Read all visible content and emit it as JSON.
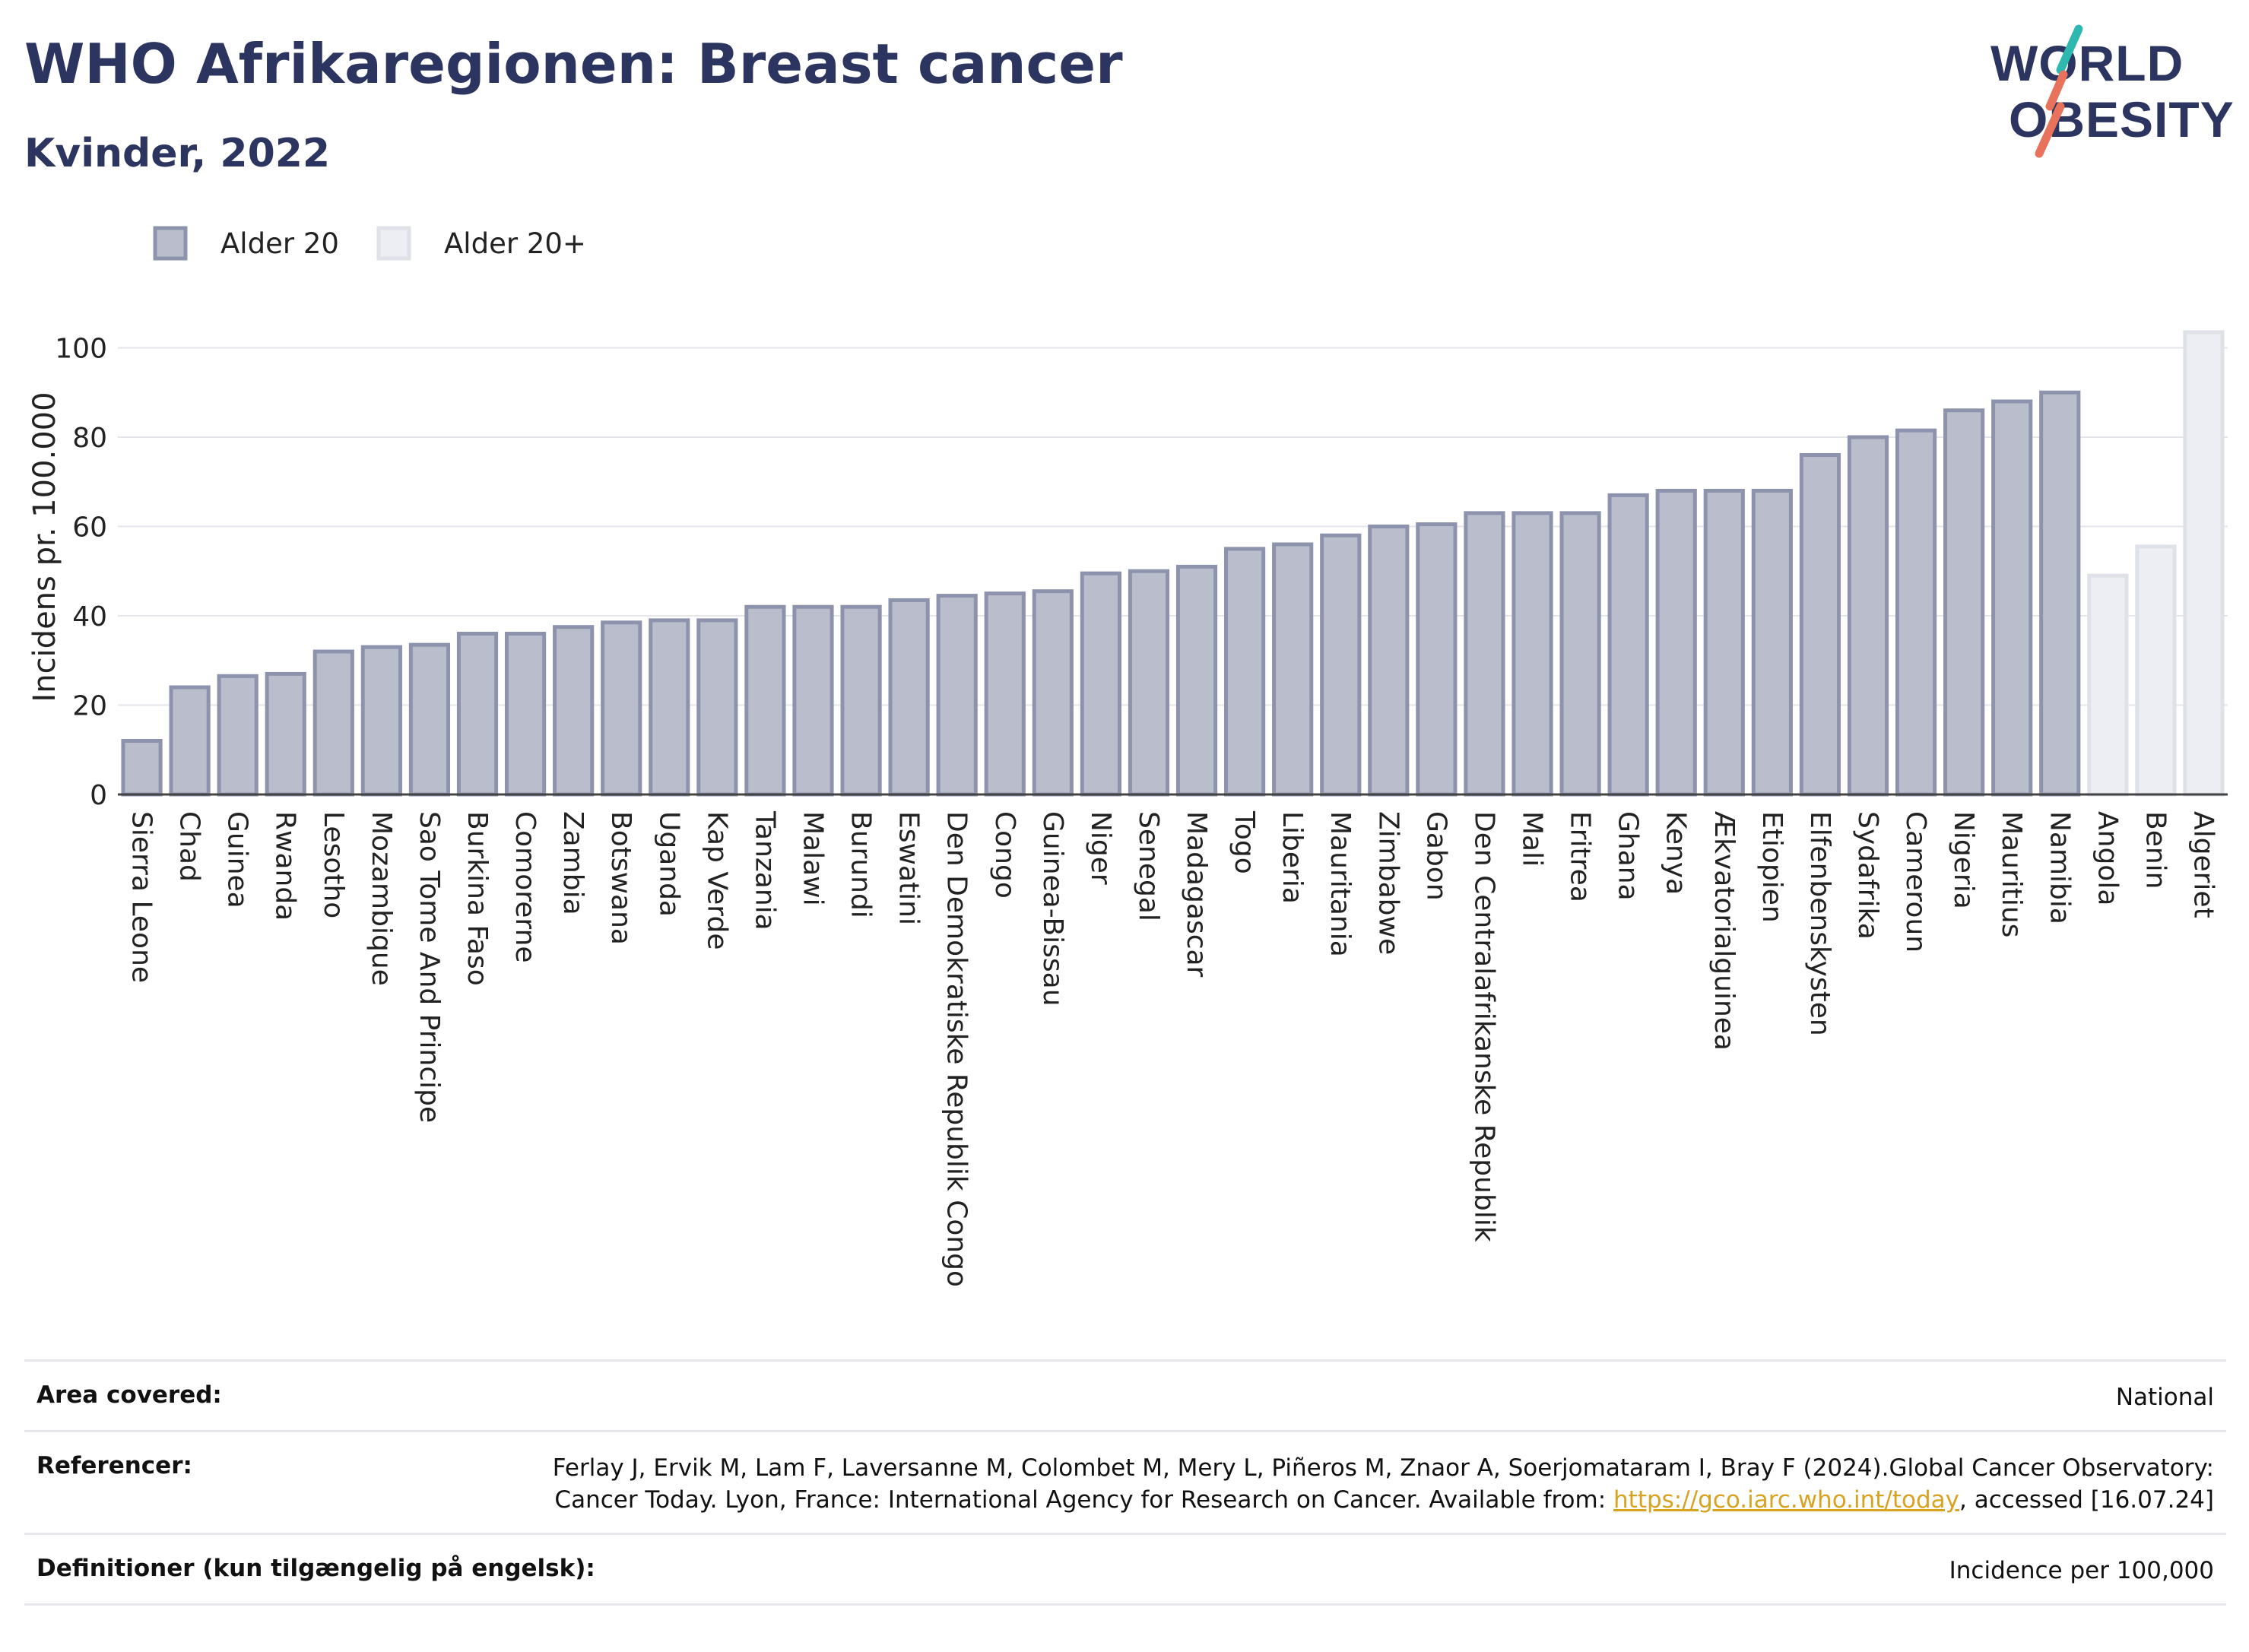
{
  "header": {
    "title": "WHO Afrikaregionen: Breast cancer",
    "subtitle": "Kvinder, 2022",
    "logo_line1": "WORLD",
    "logo_line2": "OBESITY"
  },
  "colors": {
    "primary": "#2c3560",
    "bar_fill": "#babdcb",
    "bar_stroke": "#8d93ac",
    "bar_alt_fill": "#eceef3",
    "bar_alt_stroke": "#dfe1e8",
    "logo_teal": "#2fb8b0",
    "logo_coral": "#e8725c",
    "link": "#d8a320"
  },
  "chart_data": {
    "type": "bar",
    "ylabel": "Incidens pr. 100.000",
    "ylim": [
      0,
      104
    ],
    "yticks": [
      0,
      20,
      40,
      60,
      80,
      100
    ],
    "grid": true,
    "legend": [
      {
        "name": "Alder 20",
        "style": "primary"
      },
      {
        "name": "Alder 20+",
        "style": "alt"
      }
    ],
    "categories": [
      "Sierra Leone",
      "Chad",
      "Guinea",
      "Rwanda",
      "Lesotho",
      "Mozambique",
      "Sao Tome And Principe",
      "Burkina Faso",
      "Comorerne",
      "Zambia",
      "Botswana",
      "Uganda",
      "Kap Verde",
      "Tanzania",
      "Malawi",
      "Burundi",
      "Eswatini",
      "Den Demokratiske Republik Congo",
      "Congo",
      "Guinea-Bissau",
      "Niger",
      "Senegal",
      "Madagascar",
      "Togo",
      "Liberia",
      "Mauritania",
      "Zimbabwe",
      "Gabon",
      "Den Centralafrikanske Republik",
      "Mali",
      "Eritrea",
      "Ghana",
      "Kenya",
      "Ækvatorialguinea",
      "Etiopien",
      "Elfenbenskysten",
      "Sydafrika",
      "Cameroun",
      "Nigeria",
      "Mauritius",
      "Namibia",
      "Angola",
      "Benin",
      "Algeriet"
    ],
    "values": [
      12,
      24,
      26.5,
      27,
      32,
      33,
      33.5,
      36,
      36,
      37.5,
      38.5,
      39,
      39,
      42,
      42,
      42,
      43.5,
      44.5,
      45,
      45.5,
      49.5,
      50,
      51,
      55,
      56,
      58,
      60,
      60.5,
      63,
      63,
      63,
      67,
      68,
      68,
      68,
      76,
      80,
      81.5,
      86,
      88,
      90,
      49,
      55.5,
      103.5
    ],
    "series_group": [
      "Alder 20",
      "Alder 20",
      "Alder 20",
      "Alder 20",
      "Alder 20",
      "Alder 20",
      "Alder 20",
      "Alder 20",
      "Alder 20",
      "Alder 20",
      "Alder 20",
      "Alder 20",
      "Alder 20",
      "Alder 20",
      "Alder 20",
      "Alder 20",
      "Alder 20",
      "Alder 20",
      "Alder 20",
      "Alder 20",
      "Alder 20",
      "Alder 20",
      "Alder 20",
      "Alder 20",
      "Alder 20",
      "Alder 20",
      "Alder 20",
      "Alder 20",
      "Alder 20",
      "Alder 20",
      "Alder 20",
      "Alder 20",
      "Alder 20",
      "Alder 20",
      "Alder 20",
      "Alder 20",
      "Alder 20",
      "Alder 20",
      "Alder 20",
      "Alder 20",
      "Alder 20",
      "Alder 20+",
      "Alder 20+",
      "Alder 20+"
    ]
  },
  "meta": {
    "area_label": "Area covered:",
    "area_value": "National",
    "ref_label": "Referencer:",
    "ref_text1": "Ferlay J, Ervik M, Lam F, Laversanne M, Colombet M, Mery L, Piñeros M, Znaor A, Soerjomataram I, Bray F (2024).Global Cancer Observatory: Cancer Today. Lyon, France: International Agency for Research on Cancer. Available from: ",
    "ref_link": "https://gco.iarc.who.int/today",
    "ref_text2": ", accessed [16.07.24]",
    "def_label": "Definitioner (kun tilgængelig på engelsk):",
    "def_value": "Incidence per 100,000"
  }
}
